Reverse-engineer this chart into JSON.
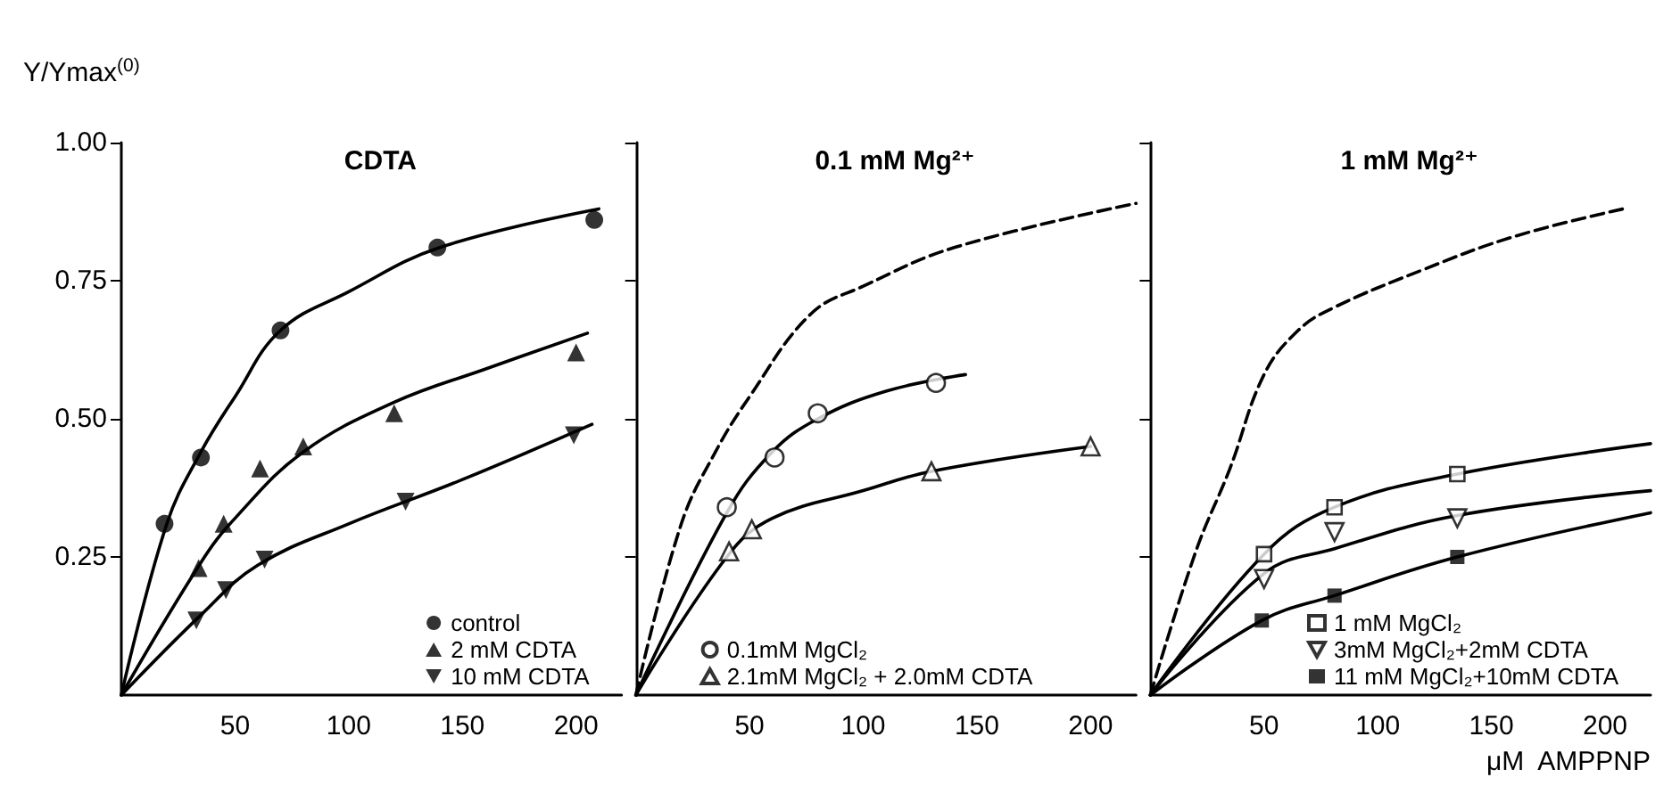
{
  "chart_data": [
    {
      "type": "scatter",
      "title": "CDTA",
      "ylabel": "Y/Ymax$^{(0)}$",
      "xlim": [
        0,
        220
      ],
      "xticks": [
        50,
        100,
        150,
        200
      ],
      "ylim": [
        0,
        1
      ],
      "yticks": [
        0.25,
        {
          "value": 0.5,
          "label": "0.50"
        },
        0.75,
        {
          "value": 1.0,
          "label": "1.00"
        }
      ],
      "grid": false,
      "legend": "bottom right",
      "series": [
        {
          "name": "control",
          "color": "#000000",
          "marker": "circle",
          "x": [
            19,
            35,
            70,
            139,
            208
          ],
          "values": [
            0.31,
            0.43,
            0.66,
            0.81,
            0.86
          ]
        },
        {
          "name": "2 mM CDTA",
          "color": "#000000",
          "marker": "triangle",
          "x": [
            34,
            45,
            61,
            80,
            120,
            200
          ],
          "values": [
            0.23,
            0.31,
            0.41,
            0.45,
            0.51,
            0.62
          ]
        },
        {
          "name": "10 mM CDTA",
          "color": "#000000",
          "marker": "triangle-down",
          "x": [
            33,
            46,
            63,
            125,
            199
          ],
          "values": [
            0.135,
            0.19,
            0.245,
            0.35,
            0.47
          ]
        },
        {
          "type": "line",
          "color": "#000000",
          "line_style": "solid",
          "marker": "none",
          "x": [
            0,
            20,
            35,
            50,
            70,
            100,
            140,
            210
          ],
          "values": [
            0,
            0.31,
            0.44,
            0.54,
            0.66,
            0.73,
            0.81,
            0.88
          ]
        },
        {
          "type": "line",
          "color": "#000000",
          "line_style": "solid",
          "marker": "none",
          "x": [
            0,
            35,
            50,
            80,
            120,
            160,
            205
          ],
          "values": [
            0,
            0.24,
            0.32,
            0.44,
            0.53,
            0.59,
            0.655
          ]
        },
        {
          "type": "line",
          "color": "#000000",
          "line_style": "solid",
          "marker": "none",
          "x": [
            0,
            35,
            60,
            100,
            150,
            207
          ],
          "values": [
            0,
            0.145,
            0.235,
            0.31,
            0.39,
            0.49
          ]
        }
      ]
    },
    {
      "type": "scatter",
      "title": "0.1 mM Mg²⁺",
      "xlim": [
        0,
        220
      ],
      "xticks": [
        50,
        100,
        150,
        200
      ],
      "ylim": [
        0,
        1
      ],
      "yticks": [
        {
          "value": 0.25,
          "label": null
        },
        {
          "value": 0.5,
          "label": null
        },
        {
          "value": 0.75,
          "label": null
        },
        {
          "value": 1.0,
          "label": null
        }
      ],
      "grid": false,
      "legend": "bottom left",
      "tick_labels": "x",
      "series": [
        {
          "name": "0.1mM MgCl₂",
          "color": "#ffffff",
          "marker": "circle",
          "x": [
            40,
            61,
            80,
            132
          ],
          "values": [
            0.34,
            0.43,
            0.51,
            0.565
          ]
        },
        {
          "name": "2.1mM MgCl₂ + 2.0mM CDTA",
          "color": "#ffffff",
          "marker": "triangle",
          "x": [
            41,
            51,
            130,
            200
          ],
          "values": [
            0.26,
            0.3,
            0.405,
            0.45
          ]
        },
        {
          "type": "line",
          "color": "#000000",
          "line_style": "dashed",
          "marker": "none",
          "x": [
            0,
            20,
            35,
            50,
            77,
            100,
            140,
            220
          ],
          "values": [
            0,
            0.31,
            0.44,
            0.54,
            0.69,
            0.74,
            0.81,
            0.89
          ]
        },
        {
          "type": "line",
          "color": "#000000",
          "line_style": "solid",
          "marker": "none",
          "x": [
            0,
            40,
            60,
            80,
            110,
            145
          ],
          "values": [
            0,
            0.33,
            0.44,
            0.5,
            0.55,
            0.58
          ]
        },
        {
          "type": "line",
          "color": "#000000",
          "line_style": "solid",
          "marker": "none",
          "x": [
            0,
            40,
            60,
            100,
            130,
            200
          ],
          "values": [
            0,
            0.25,
            0.32,
            0.37,
            0.405,
            0.45
          ]
        }
      ]
    },
    {
      "type": "scatter",
      "title": "1 mM Mg²⁺",
      "xlabel": "μM  AMPPNP",
      "xlim": [
        0,
        220
      ],
      "xticks": [
        50,
        100,
        150,
        200
      ],
      "ylim": [
        0,
        1
      ],
      "yticks": [
        {
          "value": 0.25,
          "label": null
        },
        {
          "value": 0.5,
          "label": null
        },
        {
          "value": 0.75,
          "label": null
        },
        {
          "value": 1.0,
          "label": null
        }
      ],
      "grid": false,
      "legend": "bottom right",
      "tick_labels": "x",
      "series": [
        {
          "name": "1 mM MgCl₂",
          "color": "#ffffff",
          "marker": "square",
          "x": [
            50,
            81,
            135
          ],
          "values": [
            0.255,
            0.34,
            0.4
          ]
        },
        {
          "name": "3mM MgCl₂+2mM CDTA",
          "color": "#ffffff",
          "marker": "triangle-down",
          "x": [
            50,
            81,
            135
          ],
          "values": [
            0.21,
            0.295,
            0.32
          ]
        },
        {
          "name": "11 mM MgCl₂+10mM CDTA",
          "color": "#000000",
          "marker": "square",
          "x": [
            49,
            81,
            135
          ],
          "values": [
            0.135,
            0.18,
            0.25
          ]
        },
        {
          "type": "line",
          "color": "#000000",
          "line_style": "dashed",
          "marker": "none",
          "x": [
            0,
            20,
            35,
            50,
            65,
            80,
            120,
            160,
            208
          ],
          "values": [
            0,
            0.26,
            0.41,
            0.58,
            0.66,
            0.7,
            0.77,
            0.83,
            0.88
          ]
        },
        {
          "type": "line",
          "color": "#000000",
          "line_style": "solid",
          "marker": "none",
          "x": [
            0,
            50,
            81,
            135,
            220
          ],
          "values": [
            0,
            0.255,
            0.34,
            0.4,
            0.455
          ]
        },
        {
          "type": "line",
          "color": "#000000",
          "line_style": "solid",
          "marker": "none",
          "x": [
            0,
            50,
            81,
            135,
            220
          ],
          "values": [
            0,
            0.22,
            0.265,
            0.325,
            0.37
          ]
        },
        {
          "type": "line",
          "color": "#000000",
          "line_style": "solid",
          "marker": "none",
          "x": [
            0,
            49,
            81,
            135,
            220
          ],
          "values": [
            0,
            0.135,
            0.18,
            0.25,
            0.33
          ]
        }
      ]
    }
  ]
}
